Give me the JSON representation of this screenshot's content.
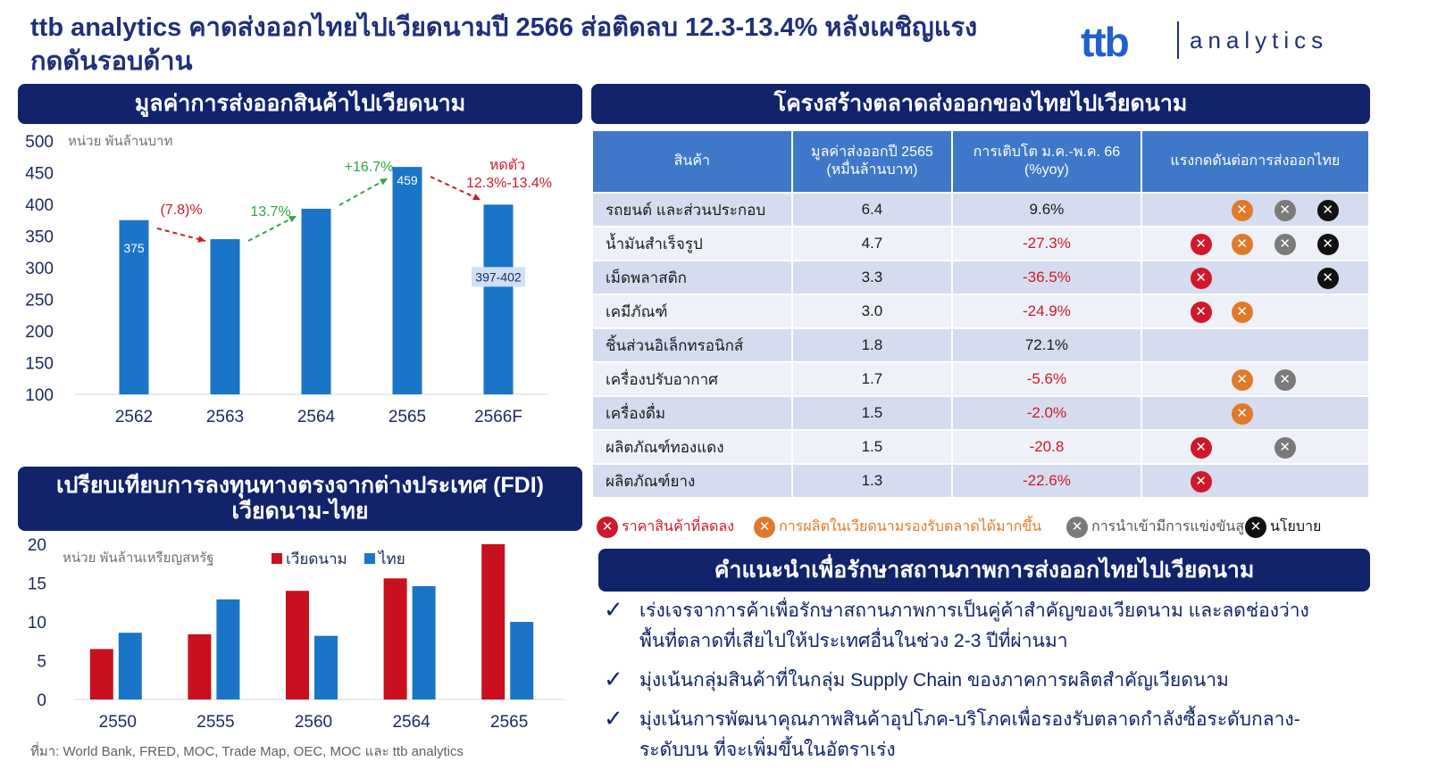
{
  "header": {
    "title": "ttb analytics คาดส่งออกไทยไปเวียดนามปี 2566 ส่อติดลบ 12.3-13.4% หลังเผชิญแรงกดดันรอบด้าน",
    "logo_mark": "ttb",
    "logo_text": "analytics"
  },
  "panels": {
    "export_value": "มูลค่าการส่งออกสินค้าไปเวียดนาม",
    "structure": "โครงสร้างตลาดส่งออกของไทยไปเวียดนาม",
    "fdi": "เปรียบเทียบการลงทุนทางตรงจากต่างประเทศ (FDI) เวียดนาม-ไทย",
    "recommend": "คำแนะนำเพื่อรักษาสถานภาพการส่งออกไทยไปเวียดนาม"
  },
  "chart_data": [
    {
      "type": "bar",
      "unit_label": "หน่วย พันล้านบาท",
      "categories": [
        "2562",
        "2563",
        "2564",
        "2565",
        "2566F"
      ],
      "values": [
        375,
        345,
        393,
        459,
        399.5
      ],
      "value_labels": [
        "375",
        "",
        "",
        "459",
        "397-402"
      ],
      "ylim": [
        100,
        500
      ],
      "yticks": [
        "100",
        "150",
        "200",
        "250",
        "300",
        "350",
        "400",
        "450",
        "500"
      ],
      "color": "#1a75c8",
      "annotations": [
        {
          "text": "(7.8)%",
          "color": "#d0182a"
        },
        {
          "text": "13.7%",
          "color": "#2aa84a"
        },
        {
          "text": "+16.7%",
          "color": "#2aa84a"
        },
        {
          "text": "หดตัว",
          "color": "#d0182a"
        },
        {
          "text": "12.3%-13.4%",
          "color": "#d0182a"
        }
      ]
    },
    {
      "type": "bar",
      "unit_label": "หน่วย พันล้านเหรียญสหรัฐ",
      "categories": [
        "2550",
        "2555",
        "2560",
        "2564",
        "2565"
      ],
      "series": [
        {
          "name": "เวียดนาม",
          "color": "#c8101e",
          "values": [
            6.5,
            8.4,
            14,
            15.6,
            20
          ]
        },
        {
          "name": "ไทย",
          "color": "#1a75c8",
          "values": [
            8.6,
            12.9,
            8.2,
            14.6,
            10
          ]
        }
      ],
      "ylim": [
        0,
        20
      ],
      "yticks": [
        "0",
        "5",
        "10",
        "15",
        "20"
      ]
    }
  ],
  "table": {
    "headers": [
      "สินค้า",
      "มูลค่าส่งออกปี 2565 (หมื่นล้านบาท)",
      "การเติบโต ม.ค.-พ.ค. 66 (%yoy)",
      "แรงกดดันต่อการส่งออกไทย"
    ],
    "rows": [
      {
        "product": "รถยนต์ และส่วนประกอบ",
        "value": "6.4",
        "growth": "9.6%",
        "neg": false,
        "icons": [
          "orange",
          "gray",
          "black"
        ]
      },
      {
        "product": "น้ำมันสำเร็จรูป",
        "value": "4.7",
        "growth": "-27.3%",
        "neg": true,
        "icons": [
          "red",
          "orange",
          "gray",
          "black"
        ]
      },
      {
        "product": "เม็ดพลาสติก",
        "value": "3.3",
        "growth": "-36.5%",
        "neg": true,
        "icons": [
          "red",
          "black"
        ]
      },
      {
        "product": "เคมีภัณฑ์",
        "value": "3.0",
        "growth": "-24.9%",
        "neg": true,
        "icons": [
          "red",
          "orange"
        ]
      },
      {
        "product": "ชิ้นส่วนอิเล็กทรอนิกส์",
        "value": "1.8",
        "growth": "72.1%",
        "neg": false,
        "icons": []
      },
      {
        "product": "เครื่องปรับอากาศ",
        "value": "1.7",
        "growth": "-5.6%",
        "neg": true,
        "icons": [
          "orange",
          "gray"
        ]
      },
      {
        "product": "เครื่องดื่ม",
        "value": "1.5",
        "growth": "-2.0%",
        "neg": true,
        "icons": [
          "orange"
        ]
      },
      {
        "product": "ผลิตภัณฑ์ทองแดง",
        "value": "1.5",
        "growth": "-20.8",
        "neg": true,
        "icons": [
          "red",
          "gray"
        ]
      },
      {
        "product": "ผลิตภัณฑ์ยาง",
        "value": "1.3",
        "growth": "-22.6%",
        "neg": true,
        "icons": [
          "red"
        ]
      }
    ]
  },
  "legend": [
    {
      "label": "ราคาสินค้าที่ลดลง",
      "icon": "red",
      "color": "#d0182a"
    },
    {
      "label": "การผลิตในเวียดนามรองรับตลาดได้มากขึ้น",
      "icon": "orange",
      "color": "#e07a2a"
    },
    {
      "label": "การนำเข้ามีการแข่งขันสูง",
      "icon": "gray",
      "color": "#555555"
    },
    {
      "label": "นโยบาย",
      "icon": "black",
      "color": "#111111"
    }
  ],
  "recommendations": [
    "เร่งเจรจาการค้าเพื่อรักษาสถานภาพการเป็นคู่ค้าสำคัญของเวียดนาม และลดช่องว่างพื้นที่ตลาดที่เสียไปให้ประเทศอื่นในช่วง 2-3 ปีที่ผ่านมา",
    "มุ่งเน้นกลุ่มสินค้าที่ในกลุ่ม Supply Chain ของภาคการผลิตสำคัญเวียดนาม",
    "มุ่งเน้นการพัฒนาคุณภาพสินค้าอุปโภค-บริโภคเพื่อรองรับตลาดกำลังซื้อระดับกลาง-ระดับบน ที่จะเพิ่มขึ้นในอัตราเร่ง"
  ],
  "source": "ที่มา: World Bank, FRED, MOC, Trade Map, OEC, MOC และ ttb analytics"
}
